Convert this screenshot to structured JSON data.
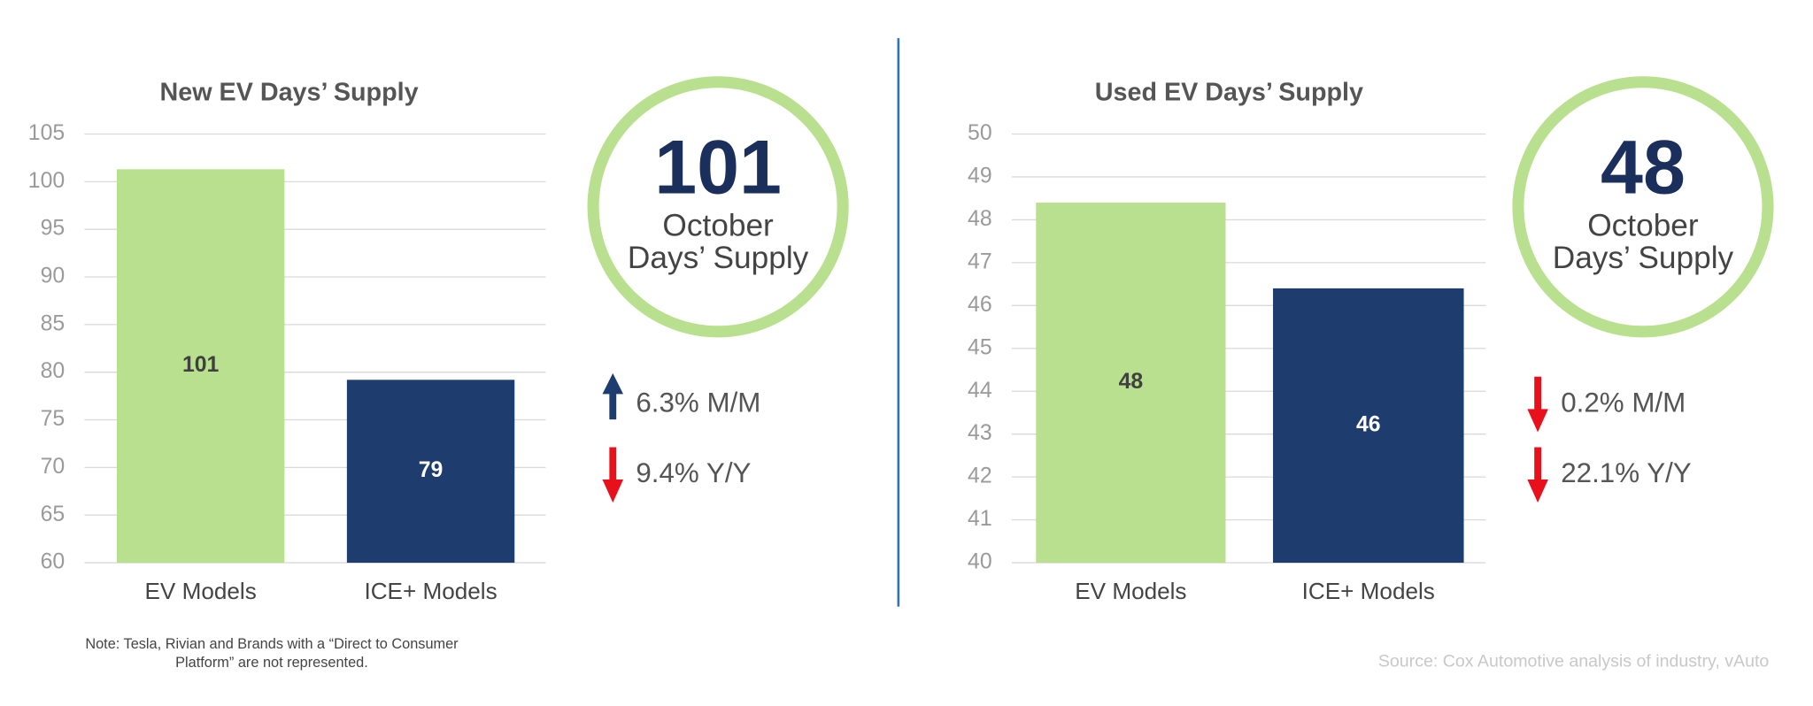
{
  "chart_data": [
    {
      "type": "bar",
      "title": "New EV Days’ Supply",
      "categories": [
        "EV Models",
        "ICE+ Models"
      ],
      "values": [
        101.3,
        79.2
      ],
      "value_labels": [
        "101",
        "79"
      ],
      "colors": [
        "#b8e08e",
        "#1f3c6e"
      ],
      "ylim": [
        60,
        105
      ],
      "yticks": [
        60,
        65,
        70,
        75,
        80,
        85,
        90,
        95,
        100,
        105
      ],
      "grid": true,
      "highlight": {
        "value": "101",
        "lines": [
          "October",
          "Days’ Supply"
        ]
      },
      "changes": [
        {
          "text": "6.3% M/M",
          "direction": "up",
          "color": "#1f3c6e"
        },
        {
          "text": "9.4% Y/Y",
          "direction": "down",
          "color": "#e8101a"
        }
      ]
    },
    {
      "type": "bar",
      "title": "Used EV Days’ Supply",
      "categories": [
        "EV Models",
        "ICE+ Models"
      ],
      "values": [
        48.4,
        46.4
      ],
      "value_labels": [
        "48",
        "46"
      ],
      "colors": [
        "#b8e08e",
        "#1f3c6e"
      ],
      "ylim": [
        40,
        50
      ],
      "yticks": [
        40,
        41,
        42,
        43,
        44,
        45,
        46,
        47,
        48,
        49,
        50
      ],
      "grid": true,
      "highlight": {
        "value": "48",
        "lines": [
          "October",
          "Days’ Supply"
        ]
      },
      "changes": [
        {
          "text": "0.2% M/M",
          "direction": "down",
          "color": "#e8101a"
        },
        {
          "text": "22.1% Y/Y",
          "direction": "down",
          "color": "#e8101a"
        }
      ]
    }
  ],
  "note": [
    "Note: Tesla, Rivian and Brands with a “Direct to Consumer",
    "Platform” are not represented."
  ],
  "source": "Source: Cox Automotive analysis of industry, vAuto"
}
